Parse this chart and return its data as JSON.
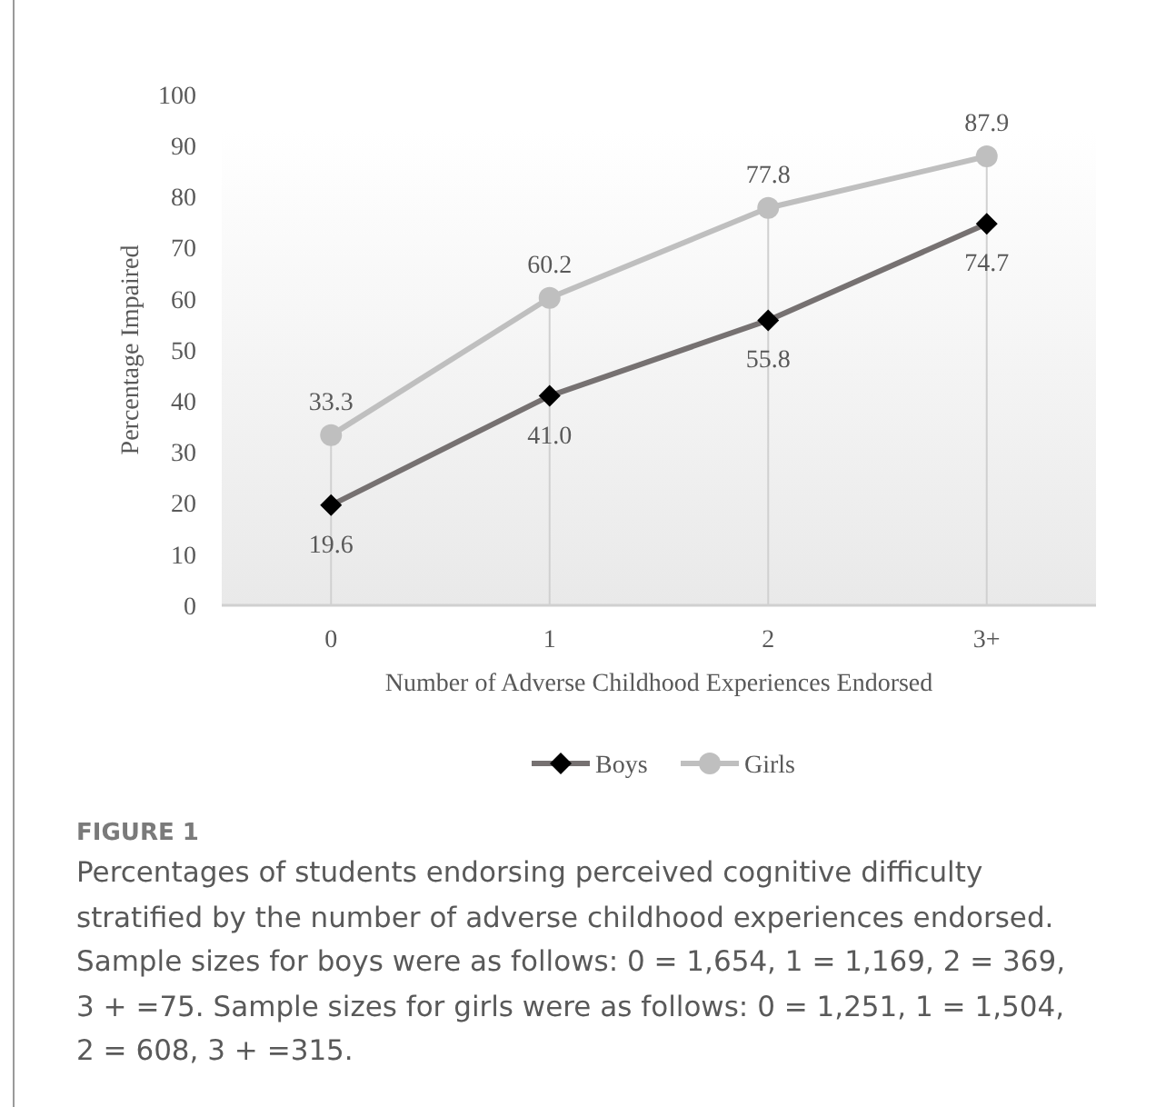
{
  "chart_data": {
    "type": "line",
    "title": "FIGURE 1",
    "xlabel": "Number of Adverse Childhood Experiences Endorsed",
    "ylabel": "Percentage Impaired",
    "categories": [
      "0",
      "1",
      "2",
      "3+"
    ],
    "series": [
      {
        "name": "Boys",
        "color": "#767171",
        "marker": "diamond",
        "values": [
          19.6,
          41.0,
          55.8,
          74.7
        ],
        "value_labels": [
          "19.6",
          "41.0",
          "55.8",
          "74.7"
        ]
      },
      {
        "name": "Girls",
        "color": "#bfbfbf",
        "marker": "circle",
        "values": [
          33.3,
          60.2,
          77.8,
          87.9
        ],
        "value_labels": [
          "33.3",
          "60.2",
          "77.8",
          "87.9"
        ]
      }
    ],
    "ylim": [
      0,
      100
    ],
    "yticks": [
      0,
      10,
      20,
      30,
      40,
      50,
      60,
      70,
      80,
      90,
      100
    ],
    "grid": "x",
    "legend": "bottom",
    "annotations": [
      "Percentages of students endorsing perceived cognitive difficulty stratified by the number of adverse childhood experiences endorsed. Sample sizes for boys were as follows: 0 = 1,654, 1 = 1,169, 2 = 369, 3 + =75. Sample sizes for girls were as follows: 0 = 1,251, 1 = 1,504, 2 = 608, 3 + =315."
    ]
  }
}
